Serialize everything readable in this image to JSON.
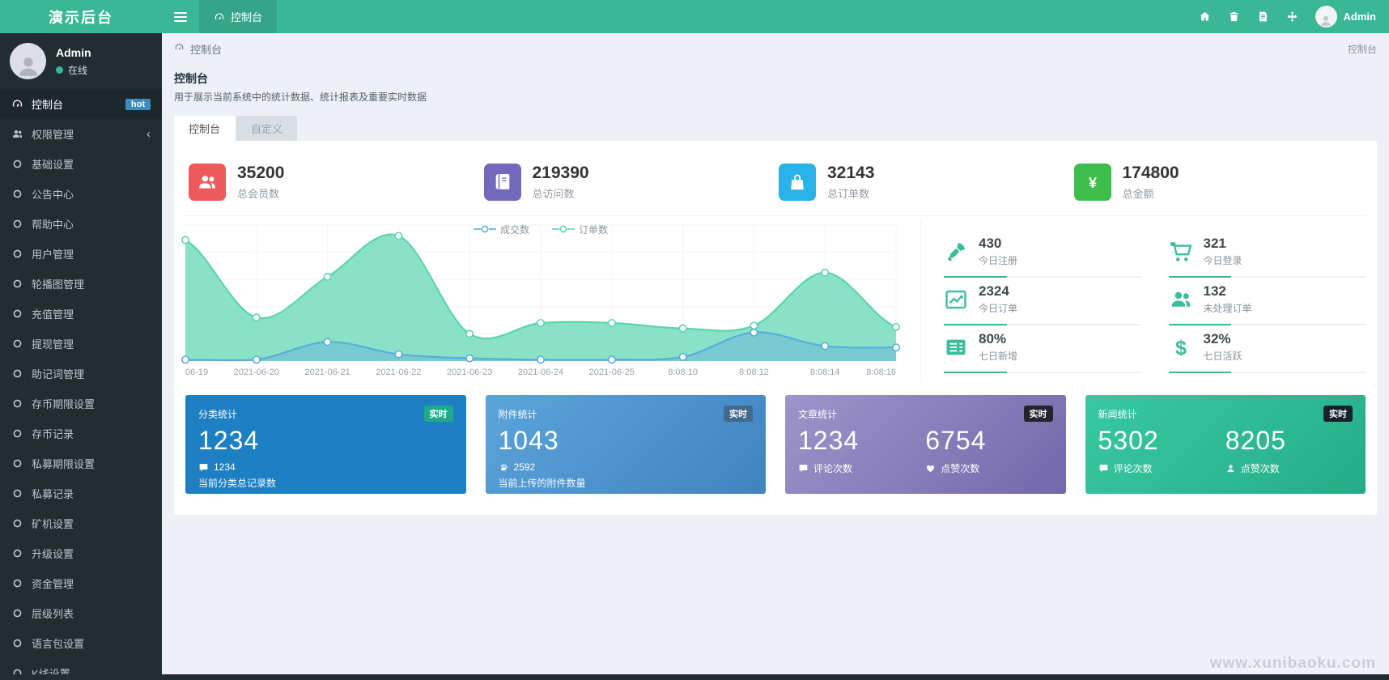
{
  "navbar": {
    "brand": "演示后台",
    "tab": {
      "label": "控制台",
      "icon": "dashboard"
    },
    "actions": [
      {
        "icon": "home"
      },
      {
        "icon": "trash"
      },
      {
        "icon": "log"
      },
      {
        "icon": "expand"
      }
    ],
    "user": {
      "name": "Admin"
    }
  },
  "sidebar": {
    "user": {
      "name": "Admin",
      "status": "在线"
    },
    "items": [
      {
        "label": "控制台",
        "icon": "dashboard",
        "badge": "hot",
        "active": true
      },
      {
        "label": "权限管理",
        "icon": "users",
        "expandable": true
      },
      {
        "label": "基础设置",
        "icon": "circle"
      },
      {
        "label": "公告中心",
        "icon": "circle"
      },
      {
        "label": "帮助中心",
        "icon": "circle"
      },
      {
        "label": "用户管理",
        "icon": "circle"
      },
      {
        "label": "轮播图管理",
        "icon": "circle"
      },
      {
        "label": "充值管理",
        "icon": "circle"
      },
      {
        "label": "提现管理",
        "icon": "circle"
      },
      {
        "label": "助记词管理",
        "icon": "circle"
      },
      {
        "label": "存币期限设置",
        "icon": "circle"
      },
      {
        "label": "存币记录",
        "icon": "circle"
      },
      {
        "label": "私募期限设置",
        "icon": "circle"
      },
      {
        "label": "私募记录",
        "icon": "circle"
      },
      {
        "label": "矿机设置",
        "icon": "circle"
      },
      {
        "label": "升级设置",
        "icon": "circle"
      },
      {
        "label": "资金管理",
        "icon": "circle"
      },
      {
        "label": "层级列表",
        "icon": "circle"
      },
      {
        "label": "语言包设置",
        "icon": "circle"
      },
      {
        "label": "K线设置",
        "icon": "circle"
      }
    ]
  },
  "breadcrumb": {
    "current": "控制台",
    "right": "控制台"
  },
  "page_header": {
    "title": "控制台",
    "subtitle": "用于展示当前系统中的统计数据、统计报表及重要实时数据"
  },
  "tabs": [
    {
      "label": "控制台",
      "active": true
    },
    {
      "label": "自定义",
      "active": false
    }
  ],
  "stat_cards": [
    {
      "value": "35200",
      "label": "总会员数",
      "icon": "users",
      "color": "#ee5a5a"
    },
    {
      "value": "219390",
      "label": "总访问数",
      "icon": "book",
      "color": "#7468bd"
    },
    {
      "value": "32143",
      "label": "总订单数",
      "icon": "bag",
      "color": "#29b2e8"
    },
    {
      "value": "174800",
      "label": "总金额",
      "icon": "yen",
      "color": "#3dbd4b"
    }
  ],
  "chart_data": {
    "type": "area",
    "categories": [
      "06-19",
      "2021-06-20",
      "2021-06-21",
      "2021-06-22",
      "2021-06-23",
      "2021-06-24",
      "2021-06-25",
      "8:08:10",
      "8:08:12",
      "8:08:14",
      "8:08:16"
    ],
    "series": [
      {
        "name": "成交数",
        "color": "#5aabdf",
        "fill": "rgba(90,171,223,0.40)",
        "values": [
          1,
          1,
          14,
          5,
          2,
          1,
          1,
          3,
          21,
          11,
          10
        ]
      },
      {
        "name": "订单数",
        "color": "#5bd3ad",
        "fill": "#8ae2c6",
        "values": [
          89,
          32,
          62,
          92,
          20,
          28,
          28,
          24,
          26,
          65,
          25
        ]
      }
    ],
    "title": "",
    "xlabel": "",
    "ylabel": "",
    "ylim": [
      0,
      100
    ],
    "grid": true,
    "legend_position": "top-center"
  },
  "mini_stats": [
    {
      "value": "430",
      "label": "今日注册",
      "icon": "rocket"
    },
    {
      "value": "321",
      "label": "今日登录",
      "icon": "cart"
    },
    {
      "value": "2324",
      "label": "今日订单",
      "icon": "chart-line"
    },
    {
      "value": "132",
      "label": "未处理订单",
      "icon": "users"
    },
    {
      "value": "80%",
      "label": "七日新增",
      "icon": "list"
    },
    {
      "value": "32%",
      "label": "七日活跃",
      "icon": "dollar"
    }
  ],
  "summary_cards": [
    {
      "title": "分类统计",
      "badge": "实时",
      "bg": "#1d80c3",
      "bg2": "#1d80c3",
      "badge_bg": "#22a98a",
      "columns": [
        {
          "value": "1234",
          "icon": "comment",
          "caption": "1234"
        }
      ],
      "note": "当前分类总记录数"
    },
    {
      "title": "附件统计",
      "badge": "实时",
      "bg": "#5ba4db",
      "bg2": "#4083c1",
      "badge_bg": "#44688e",
      "columns": [
        {
          "value": "1043",
          "icon": "paw",
          "caption": "2592"
        }
      ],
      "note": "当前上传的附件数量"
    },
    {
      "title": "文章统计",
      "badge": "实时",
      "bg": "#9d95cb",
      "bg2": "#7268ab",
      "badge_bg": "#23242e",
      "columns": [
        {
          "value": "1234",
          "icon": "comment",
          "caption": "评论次数"
        },
        {
          "value": "6754",
          "icon": "heart",
          "caption": "点赞次数"
        }
      ],
      "note": ""
    },
    {
      "title": "新闻统计",
      "badge": "实时",
      "bg": "#38c9a1",
      "bg2": "#24ad86",
      "badge_bg": "#16222b",
      "columns": [
        {
          "value": "5302",
          "icon": "comment",
          "caption": "评论次数"
        },
        {
          "value": "8205",
          "icon": "user",
          "caption": "点赞次数"
        }
      ],
      "note": ""
    }
  ],
  "watermark": "www.xunibaoku.com",
  "theme": {
    "primary": "#3ab795",
    "sidebar_bg": "#222d32",
    "content_bg": "#edf0f5",
    "hot_badge_bg": "#3c8dbc"
  }
}
